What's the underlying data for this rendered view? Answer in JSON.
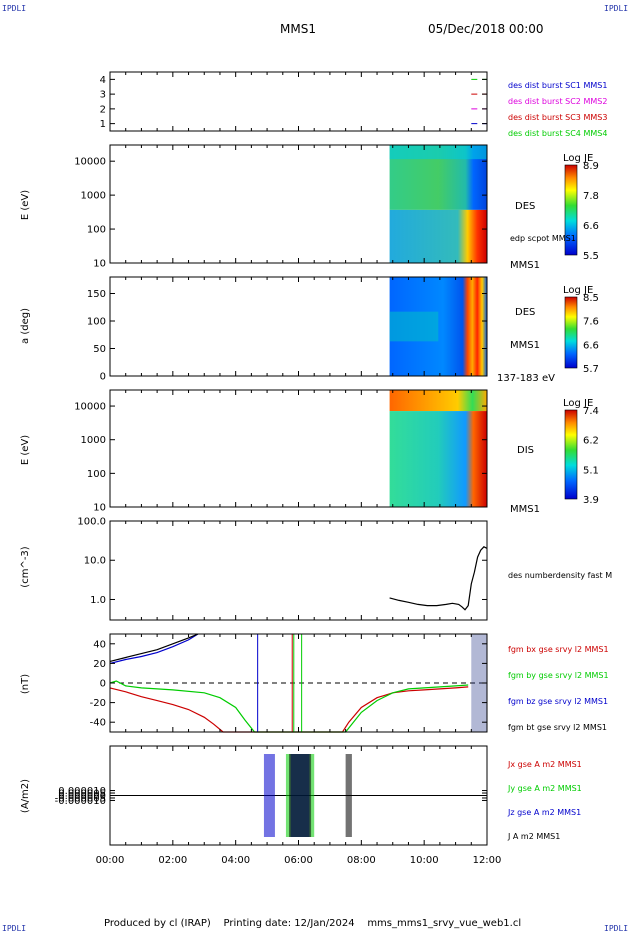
{
  "header": {
    "corner_tl": "IPDLI",
    "corner_tr": "IPDLI",
    "corner_bl": "IPDLI",
    "corner_br": "IPDLI",
    "spacecraft": "MMS1",
    "date": "05/Dec/2018 00:00"
  },
  "footer": {
    "produced_by": "Produced by cl (IRAP)",
    "printing_date": "Printing date: 12/Jan/2024",
    "filename": "mms_mms1_srvy_vue_web1.cl"
  },
  "colors": {
    "red": "#cc0000",
    "green": "#00cc00",
    "blue": "#0000cc",
    "magenta": "#dd00dd",
    "black": "#000000"
  },
  "chart_data": [
    {
      "id": "burst",
      "type": "scatter",
      "ylim": [
        0.5,
        4.5
      ],
      "yticks": [
        "1",
        "2",
        "3",
        "4"
      ],
      "series": [
        {
          "name": "des dist burst SC1 MMS1",
          "color": "#0000cc",
          "level": 1,
          "x_hours": [
            11.5,
            12.0
          ]
        },
        {
          "name": "des dist burst SC2 MMS2",
          "color": "#dd00dd",
          "level": 2,
          "x_hours": [
            11.5,
            12.0
          ]
        },
        {
          "name": "des dist burst SC3 MMS3",
          "color": "#cc0000",
          "level": 3,
          "x_hours": [
            11.5,
            12.0
          ]
        },
        {
          "name": "des dist burst SC4 MMS4",
          "color": "#00cc00",
          "level": 4,
          "x_hours": [
            11.5,
            12.0
          ]
        }
      ]
    },
    {
      "id": "des_energy",
      "type": "heatmap",
      "ylabel": "E (eV)",
      "yscale": "log",
      "ylim": [
        10,
        30000
      ],
      "yticks": [
        "10",
        "100",
        "1000",
        "10000"
      ],
      "label": "DES",
      "sublabel": "MMS1",
      "overlay_label": "edp scpot MMS1",
      "data_start_hour": 8.9,
      "colorbar": {
        "title": "Log JE",
        "ticks": [
          "8.9",
          "7.8",
          "6.6",
          "5.5"
        ]
      }
    },
    {
      "id": "des_pitch",
      "type": "heatmap",
      "ylabel": "a (deg)",
      "ylim": [
        0,
        180
      ],
      "yticks": [
        "0",
        "50",
        "100",
        "150"
      ],
      "label": "DES",
      "sublabel": "MMS1",
      "energy_range": "137-183 eV",
      "data_start_hour": 8.9,
      "colorbar": {
        "title": "Log JE",
        "ticks": [
          "8.5",
          "7.6",
          "6.6",
          "5.7"
        ]
      }
    },
    {
      "id": "dis_energy",
      "type": "heatmap",
      "ylabel": "E (eV)",
      "yscale": "log",
      "ylim": [
        10,
        30000
      ],
      "yticks": [
        "10",
        "100",
        "1000",
        "10000"
      ],
      "label": "DIS",
      "sublabel": "MMS1",
      "data_start_hour": 8.9,
      "colorbar": {
        "title": "Log JE",
        "ticks": [
          "7.4",
          "6.2",
          "5.1",
          "3.9"
        ]
      }
    },
    {
      "id": "density",
      "type": "line",
      "ylabel": "(cm^-3)",
      "yscale": "log",
      "ylim": [
        0.3,
        100
      ],
      "yticks": [
        "1.0",
        "10.0",
        "100.0"
      ],
      "series": [
        {
          "name": "des numberdensity fast M",
          "color": "#000000",
          "x": [
            8.9,
            9.2,
            9.5,
            9.8,
            10.1,
            10.4,
            10.7,
            10.9,
            11.1,
            11.2,
            11.3,
            11.4,
            11.5,
            11.6,
            11.7,
            11.8,
            11.9,
            12.0
          ],
          "y": [
            1.1,
            0.95,
            0.85,
            0.75,
            0.7,
            0.7,
            0.75,
            0.8,
            0.75,
            0.65,
            0.55,
            0.7,
            2.5,
            5.0,
            12.0,
            18.0,
            22.0,
            20.0
          ]
        }
      ]
    },
    {
      "id": "bfield",
      "type": "line",
      "ylabel": "(nT)",
      "ylim": [
        -50,
        50
      ],
      "yticks": [
        "-40",
        "-20",
        "0",
        "20",
        "40"
      ],
      "series": [
        {
          "name": "fgm bx gse srvy l2 MMS1",
          "color": "#cc0000",
          "x": [
            0.0,
            0.5,
            1.0,
            1.5,
            2.0,
            2.5,
            3.0,
            3.3,
            3.6,
            7.4,
            7.6,
            8.0,
            8.5,
            9.0,
            9.5,
            10.0,
            10.5,
            11.0,
            11.4
          ],
          "y": [
            -5,
            -9,
            -14,
            -18,
            -22,
            -27,
            -35,
            -42,
            -50,
            -50,
            -40,
            -25,
            -15,
            -10,
            -8,
            -7,
            -6,
            -5,
            -4
          ]
        },
        {
          "name": "fgm by gse srvy l2 MMS1",
          "color": "#00cc00",
          "x": [
            0.0,
            0.2,
            0.5,
            1.0,
            2.0,
            3.0,
            3.5,
            4.0,
            4.3,
            4.6,
            7.5,
            8.0,
            8.5,
            9.0,
            9.5,
            10.0,
            10.5,
            11.0,
            11.4
          ],
          "y": [
            0,
            2,
            -3,
            -5,
            -7,
            -10,
            -15,
            -25,
            -38,
            -50,
            -50,
            -30,
            -18,
            -10,
            -6,
            -5,
            -4,
            -3,
            -2
          ]
        },
        {
          "name": "fgm bz gse srvy l2 MMS1",
          "color": "#0000cc",
          "x": [
            0.0,
            0.5,
            1.0,
            1.5,
            2.0,
            2.5,
            2.8
          ],
          "y": [
            20,
            24,
            27,
            31,
            37,
            44,
            50
          ]
        },
        {
          "name": "fgm bt gse srvy l2 MMS1",
          "color": "#000000",
          "x": [
            0.0,
            0.5,
            1.0,
            1.5,
            2.0,
            2.5,
            2.8
          ],
          "y": [
            22,
            26,
            30,
            34,
            40,
            46,
            50
          ]
        }
      ]
    },
    {
      "id": "current",
      "type": "line",
      "ylabel": "(A/m2)",
      "ylim": [
        -0.0001,
        0.0001
      ],
      "yticks": [
        "-0.000010",
        "-0.000005",
        "0.000000",
        "0.000005",
        "0.000010"
      ],
      "series": [
        {
          "name": "Jx gse A m2 MMS1",
          "color": "#cc0000"
        },
        {
          "name": "Jy gse A m2 MMS1",
          "color": "#00cc00"
        },
        {
          "name": "Jz gse A m2 MMS1",
          "color": "#0000cc"
        },
        {
          "name": "J A m2 MMS1",
          "color": "#000000"
        }
      ]
    }
  ],
  "xaxis": {
    "ticks": [
      "00:00",
      "02:00",
      "04:00",
      "06:00",
      "08:00",
      "10:00",
      "12:00"
    ]
  }
}
